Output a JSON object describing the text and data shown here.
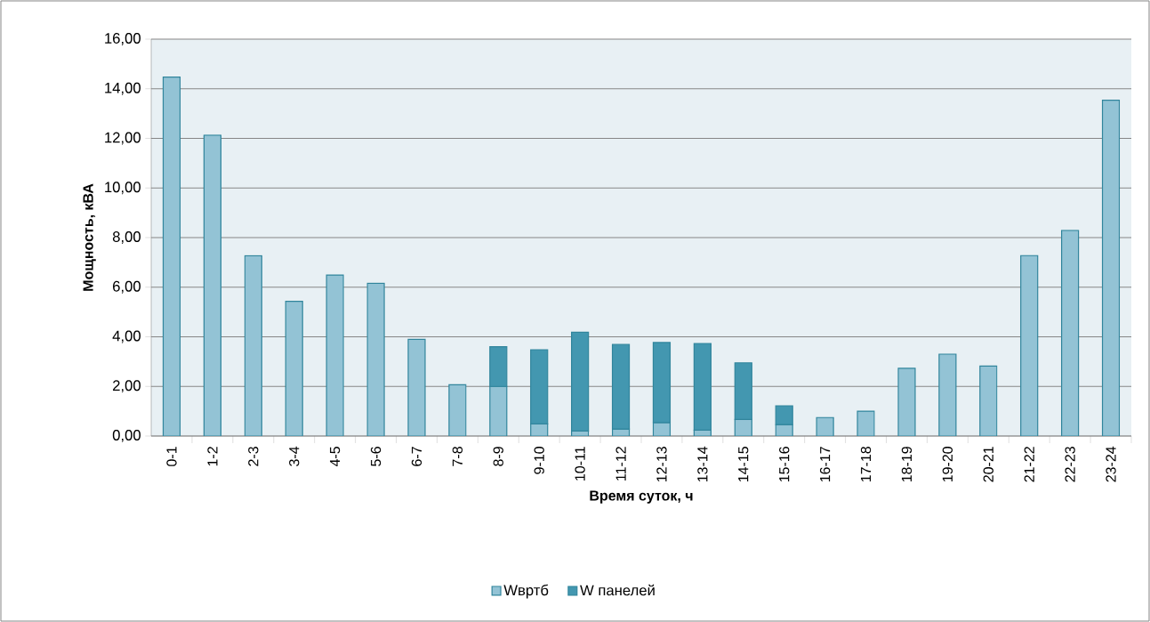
{
  "chart_data": {
    "type": "bar",
    "stacked": true,
    "xlabel": "Время суток, ч",
    "ylabel": "Мощность, кВА",
    "categories": [
      "0-1",
      "1-2",
      "2-3",
      "3-4",
      "4-5",
      "5-6",
      "6-7",
      "7-8",
      "8-9",
      "9-10",
      "10-11",
      "11-12",
      "12-13",
      "13-14",
      "14-15",
      "15-16",
      "16-17",
      "17-18",
      "18-19",
      "19-20",
      "20-21",
      "21-22",
      "22-23",
      "23-24"
    ],
    "series": [
      {
        "name": "Wвртб",
        "color": "#93c3d5",
        "values": [
          14.47,
          12.13,
          7.27,
          5.43,
          6.49,
          6.16,
          3.9,
          2.07,
          2.0,
          0.49,
          0.2,
          0.28,
          0.54,
          0.24,
          0.67,
          0.46,
          0.75,
          1.0,
          2.73,
          3.3,
          2.82,
          7.28,
          8.29,
          13.54
        ]
      },
      {
        "name": "W панелей",
        "color": "#4397b0",
        "values": [
          null,
          null,
          null,
          null,
          null,
          null,
          null,
          null,
          1.6,
          2.99,
          3.98,
          3.41,
          3.23,
          3.49,
          2.28,
          0.76,
          null,
          null,
          null,
          null,
          null,
          null,
          null,
          null
        ]
      }
    ],
    "ylim": [
      0,
      16
    ],
    "yticks": [
      {
        "value": 0,
        "label": "0,00"
      },
      {
        "value": 2,
        "label": "2,00"
      },
      {
        "value": 4,
        "label": "4,00"
      },
      {
        "value": 6,
        "label": "6,00"
      },
      {
        "value": 8,
        "label": "8,00"
      },
      {
        "value": 10,
        "label": "10,00"
      },
      {
        "value": 12,
        "label": "12,00"
      },
      {
        "value": 14,
        "label": "14,00"
      },
      {
        "value": 16,
        "label": "16,00"
      }
    ],
    "grid": "y",
    "legend": "bottom"
  }
}
